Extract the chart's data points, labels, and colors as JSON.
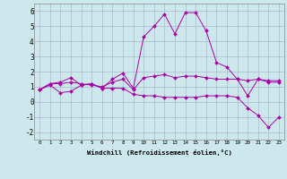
{
  "xlabel": "Windchill (Refroidissement éolien,°C)",
  "background_color": "#cce8ec",
  "grid_color": "#aabbcc",
  "line_color": "#aa00aa",
  "xlim": [
    -0.5,
    23.5
  ],
  "ylim": [
    -2.5,
    6.5
  ],
  "yticks": [
    -2,
    -1,
    0,
    1,
    2,
    3,
    4,
    5,
    6
  ],
  "xticks": [
    0,
    1,
    2,
    3,
    4,
    5,
    6,
    7,
    8,
    9,
    10,
    11,
    12,
    13,
    14,
    15,
    16,
    17,
    18,
    19,
    20,
    21,
    22,
    23
  ],
  "series": [
    {
      "x": [
        0,
        1,
        2,
        3,
        4,
        5,
        6,
        7,
        8,
        9,
        10,
        11,
        12,
        13,
        14,
        15,
        16,
        17,
        18,
        19,
        20,
        21,
        22,
        23
      ],
      "y": [
        0.8,
        1.2,
        1.3,
        1.6,
        1.1,
        1.2,
        0.9,
        1.5,
        1.9,
        0.9,
        4.3,
        5.0,
        5.8,
        4.5,
        5.9,
        5.9,
        4.7,
        2.6,
        2.3,
        1.5,
        0.4,
        1.5,
        1.3,
        1.3
      ]
    },
    {
      "x": [
        0,
        1,
        2,
        3,
        4,
        5,
        6,
        7,
        8,
        9,
        10,
        11,
        12,
        13,
        14,
        15,
        16,
        17,
        18,
        19,
        20,
        21,
        22,
        23
      ],
      "y": [
        0.8,
        1.2,
        1.2,
        1.3,
        1.2,
        1.1,
        1.0,
        1.3,
        1.5,
        0.8,
        1.6,
        1.7,
        1.8,
        1.6,
        1.7,
        1.7,
        1.6,
        1.5,
        1.5,
        1.5,
        1.4,
        1.5,
        1.4,
        1.4
      ]
    },
    {
      "x": [
        0,
        1,
        2,
        3,
        4,
        5,
        6,
        7,
        8,
        9,
        10,
        11,
        12,
        13,
        14,
        15,
        16,
        17,
        18,
        19,
        20,
        21,
        22,
        23
      ],
      "y": [
        0.8,
        1.1,
        0.6,
        0.7,
        1.1,
        1.2,
        0.9,
        0.9,
        0.9,
        0.5,
        0.4,
        0.4,
        0.3,
        0.3,
        0.3,
        0.3,
        0.4,
        0.4,
        0.4,
        0.3,
        -0.4,
        -0.9,
        -1.7,
        -1.0
      ]
    }
  ]
}
